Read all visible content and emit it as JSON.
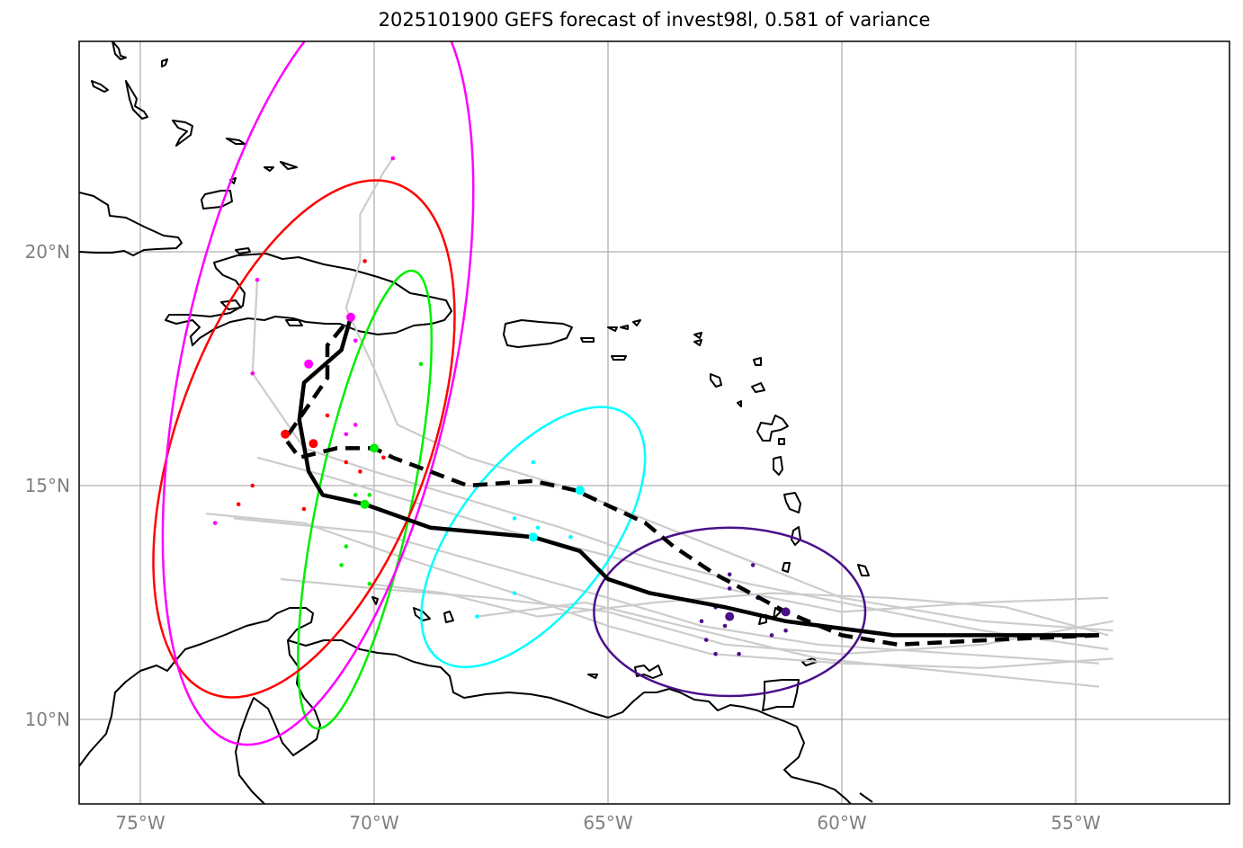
{
  "title": "2025101900 GEFS forecast of invest98l, 0.581 of variance",
  "axes": {
    "lon_range": [
      -76.3,
      -51.7
    ],
    "lat_range": [
      8.2,
      24.5
    ],
    "lon_ticks": [
      -75,
      -70,
      -65,
      -60,
      -55
    ],
    "lat_ticks": [
      10,
      15,
      20
    ],
    "lon_labels": [
      "75°W",
      "70°W",
      "65°W",
      "60°W",
      "55°W"
    ],
    "lat_labels": [
      "10°N",
      "15°N",
      "20°N"
    ]
  },
  "colors": {
    "grid": "#b0b0b0",
    "ensemble": "#cccccc",
    "coast": "#000000",
    "ellipses": [
      "#4b0f8a",
      "#00ffff",
      "#00ee00",
      "#ff0000",
      "#ff00ff"
    ]
  },
  "chart_data": {
    "type": "map",
    "main_track_solid": [
      [
        -54.5,
        11.8
      ],
      [
        -56.9,
        11.8
      ],
      [
        -58.9,
        11.8
      ],
      [
        -61.2,
        12.1
      ],
      [
        -62.5,
        12.4
      ],
      [
        -64.1,
        12.7
      ],
      [
        -65.0,
        13.0
      ],
      [
        -65.6,
        13.6
      ],
      [
        -66.6,
        13.9
      ],
      [
        -68.8,
        14.1
      ],
      [
        -70.2,
        14.6
      ],
      [
        -71.1,
        14.8
      ],
      [
        -71.4,
        15.3
      ],
      [
        -71.6,
        16.4
      ],
      [
        -71.5,
        17.2
      ],
      [
        -70.7,
        17.9
      ],
      [
        -70.5,
        18.6
      ]
    ],
    "main_track_dashed": [
      [
        -54.5,
        11.8
      ],
      [
        -56.8,
        11.7
      ],
      [
        -58.8,
        11.6
      ],
      [
        -60.0,
        11.8
      ],
      [
        -61.2,
        12.3
      ],
      [
        -62.7,
        13.1
      ],
      [
        -63.6,
        13.7
      ],
      [
        -64.2,
        14.2
      ],
      [
        -65.7,
        14.9
      ],
      [
        -66.6,
        15.1
      ],
      [
        -68.0,
        15.0
      ],
      [
        -69.6,
        15.6
      ],
      [
        -70.0,
        15.8
      ],
      [
        -70.8,
        15.8
      ],
      [
        -71.6,
        15.6
      ],
      [
        -71.9,
        16.0
      ],
      [
        -71.0,
        17.3
      ],
      [
        -71.0,
        18.0
      ],
      [
        -70.5,
        18.6
      ]
    ],
    "ellipses": [
      {
        "lon": -62.4,
        "lat": 12.3,
        "a": 2.9,
        "b": 1.8,
        "rot": 0
      },
      {
        "lon": -66.6,
        "lat": 13.9,
        "a": 3.3,
        "b": 1.6,
        "rot": 52
      },
      {
        "lon": -70.2,
        "lat": 14.7,
        "a": 5.0,
        "b": 1.0,
        "rot": 78
      },
      {
        "lon": -71.5,
        "lat": 16.0,
        "a": 5.8,
        "b": 2.7,
        "rot": 70
      },
      {
        "lon": -71.2,
        "lat": 17.6,
        "a": 8.3,
        "b": 2.9,
        "rot": 78
      }
    ],
    "member_points": [
      [
        -62.4,
        12.8,
        0
      ],
      [
        -62.7,
        12.4,
        0
      ],
      [
        -63.0,
        12.1,
        0
      ],
      [
        -62.5,
        12.0,
        0
      ],
      [
        -61.8,
        12.6,
        0
      ],
      [
        -61.5,
        11.8,
        0
      ],
      [
        -62.2,
        11.4,
        0
      ],
      [
        -62.7,
        11.4,
        0
      ],
      [
        -62.9,
        11.7,
        0
      ],
      [
        -61.9,
        13.3,
        0
      ],
      [
        -62.4,
        13.1,
        0
      ],
      [
        -61.2,
        11.9,
        0
      ],
      [
        -66.6,
        15.5,
        1
      ],
      [
        -66.5,
        14.1,
        1
      ],
      [
        -67.0,
        14.3,
        1
      ],
      [
        -67.0,
        12.7,
        1
      ],
      [
        -67.8,
        12.2,
        1
      ],
      [
        -65.8,
        13.9,
        1
      ],
      [
        -70.6,
        13.7,
        2
      ],
      [
        -70.7,
        13.3,
        2
      ],
      [
        -70.1,
        12.9,
        2
      ],
      [
        -70.4,
        14.8,
        2
      ],
      [
        -70.1,
        14.8,
        2
      ],
      [
        -69.0,
        17.6,
        2
      ],
      [
        -70.6,
        15.5,
        3
      ],
      [
        -69.8,
        15.6,
        3
      ],
      [
        -70.3,
        15.3,
        3
      ],
      [
        -71.0,
        16.5,
        3
      ],
      [
        -72.6,
        15.0,
        3
      ],
      [
        -72.9,
        14.6,
        3
      ],
      [
        -71.5,
        14.5,
        3
      ],
      [
        -70.2,
        19.8,
        3
      ],
      [
        -70.4,
        18.1,
        4
      ],
      [
        -72.6,
        17.4,
        4
      ],
      [
        -72.5,
        19.4,
        4
      ],
      [
        -70.4,
        16.3,
        4
      ],
      [
        -70.6,
        16.1,
        4
      ],
      [
        -73.4,
        14.2,
        4
      ],
      [
        -69.6,
        22.0,
        4
      ]
    ],
    "centers": [
      {
        "lon": -62.4,
        "lat": 12.2,
        "c": 0
      },
      {
        "lon": -61.2,
        "lat": 12.3,
        "c": 0
      },
      {
        "lon": -66.6,
        "lat": 13.9,
        "c": 1
      },
      {
        "lon": -65.6,
        "lat": 14.9,
        "c": 1
      },
      {
        "lon": -70.2,
        "lat": 14.6,
        "c": 2
      },
      {
        "lon": -70.0,
        "lat": 15.8,
        "c": 2
      },
      {
        "lon": -71.9,
        "lat": 16.1,
        "c": 3
      },
      {
        "lon": -71.3,
        "lat": 15.9,
        "c": 3
      },
      {
        "lon": -71.4,
        "lat": 17.6,
        "c": 4
      },
      {
        "lon": -70.5,
        "lat": 18.6,
        "c": 4
      }
    ],
    "ensemble_tracks": [
      [
        [
          -54.3,
          12.6
        ],
        [
          -57.0,
          12.5
        ],
        [
          -60.0,
          12.3
        ],
        [
          -62.5,
          12.8
        ],
        [
          -65.0,
          13.5
        ],
        [
          -67.0,
          14.0
        ],
        [
          -69.0,
          14.6
        ],
        [
          -71.0,
          15.2
        ],
        [
          -72.5,
          15.6
        ]
      ],
      [
        [
          -54.5,
          11.2
        ],
        [
          -57.5,
          11.4
        ],
        [
          -60.5,
          11.6
        ],
        [
          -63.0,
          12.0
        ],
        [
          -65.0,
          12.6
        ],
        [
          -67.5,
          13.3
        ],
        [
          -70.0,
          14.0
        ],
        [
          -73.0,
          14.3
        ]
      ],
      [
        [
          -54.2,
          11.9
        ],
        [
          -57.0,
          12.1
        ],
        [
          -60.0,
          12.6
        ],
        [
          -62.0,
          13.4
        ],
        [
          -64.0,
          14.2
        ],
        [
          -66.0,
          15.0
        ],
        [
          -68.0,
          15.6
        ],
        [
          -69.5,
          16.3
        ],
        [
          -70.0,
          17.5
        ],
        [
          -70.6,
          18.8
        ],
        [
          -70.3,
          19.8
        ],
        [
          -70.3,
          20.8
        ],
        [
          -69.8,
          21.7
        ],
        [
          -69.6,
          22.0
        ]
      ],
      [
        [
          -54.2,
          12.1
        ],
        [
          -57.0,
          11.6
        ],
        [
          -60.0,
          11.4
        ],
        [
          -62.5,
          11.6
        ],
        [
          -65.0,
          12.3
        ],
        [
          -67.5,
          12.6
        ],
        [
          -70.0,
          12.8
        ],
        [
          -72.0,
          13.0
        ]
      ],
      [
        [
          -54.5,
          10.7
        ],
        [
          -57.5,
          11.0
        ],
        [
          -60.5,
          11.3
        ],
        [
          -63.0,
          11.9
        ],
        [
          -65.5,
          12.5
        ],
        [
          -67.8,
          12.2
        ]
      ],
      [
        [
          -54.3,
          11.5
        ],
        [
          -57.0,
          11.9
        ],
        [
          -59.5,
          12.4
        ],
        [
          -62.0,
          12.9
        ],
        [
          -64.0,
          13.4
        ],
        [
          -66.0,
          14.1
        ],
        [
          -68.0,
          14.7
        ],
        [
          -70.0,
          15.3
        ],
        [
          -71.5,
          15.8
        ],
        [
          -72.6,
          17.4
        ],
        [
          -72.5,
          19.4
        ]
      ],
      [
        [
          -54.3,
          11.8
        ],
        [
          -56.5,
          12.4
        ],
        [
          -59.0,
          12.6
        ],
        [
          -61.5,
          12.7
        ],
        [
          -64.0,
          12.5
        ],
        [
          -66.5,
          12.2
        ],
        [
          -68.5,
          12.7
        ],
        [
          -70.1,
          12.9
        ]
      ],
      [
        [
          -54.2,
          11.3
        ],
        [
          -57.0,
          11.1
        ],
        [
          -60.0,
          11.2
        ],
        [
          -62.8,
          11.4
        ],
        [
          -65.0,
          12.0
        ],
        [
          -67.0,
          12.7
        ],
        [
          -69.5,
          13.5
        ],
        [
          -71.5,
          14.2
        ],
        [
          -73.6,
          14.4
        ]
      ]
    ]
  }
}
